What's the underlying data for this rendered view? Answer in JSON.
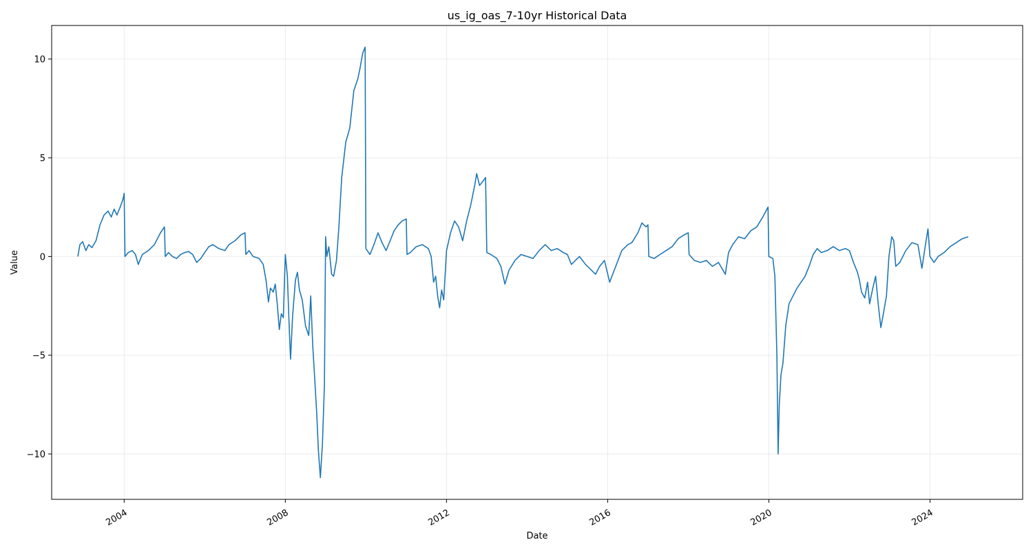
{
  "chart_data": {
    "type": "line",
    "title": "us_ig_oas_7-10yr Historical Data",
    "xlabel": "Date",
    "ylabel": "Value",
    "xlim": [
      2002.2,
      2026.3
    ],
    "ylim": [
      -12.3,
      11.7
    ],
    "grid": true,
    "x_ticks": [
      {
        "value": 2004,
        "label": "2004"
      },
      {
        "value": 2008,
        "label": "2008"
      },
      {
        "value": 2012,
        "label": "2012"
      },
      {
        "value": 2016,
        "label": "2016"
      },
      {
        "value": 2020,
        "label": "2020"
      },
      {
        "value": 2024,
        "label": "2024"
      }
    ],
    "y_ticks": [
      {
        "value": 10,
        "label": "10"
      },
      {
        "value": 5,
        "label": "5"
      },
      {
        "value": 0,
        "label": "0"
      },
      {
        "value": -5,
        "label": "−5"
      },
      {
        "value": -10,
        "label": "−10"
      }
    ],
    "series": [
      {
        "name": "us_ig_oas_7-10yr",
        "color": "#1f77b4",
        "points": [
          [
            2002.85,
            0.0
          ],
          [
            2002.9,
            0.6
          ],
          [
            2002.97,
            0.75
          ],
          [
            2003.05,
            0.3
          ],
          [
            2003.12,
            0.6
          ],
          [
            2003.2,
            0.45
          ],
          [
            2003.3,
            0.8
          ],
          [
            2003.4,
            1.6
          ],
          [
            2003.5,
            2.1
          ],
          [
            2003.6,
            2.3
          ],
          [
            2003.68,
            2.0
          ],
          [
            2003.75,
            2.4
          ],
          [
            2003.82,
            2.1
          ],
          [
            2003.9,
            2.5
          ],
          [
            2003.97,
            2.9
          ],
          [
            2004.0,
            3.2
          ],
          [
            2004.02,
            0.0
          ],
          [
            2004.1,
            0.2
          ],
          [
            2004.2,
            0.3
          ],
          [
            2004.28,
            0.1
          ],
          [
            2004.35,
            -0.4
          ],
          [
            2004.45,
            0.1
          ],
          [
            2004.6,
            0.3
          ],
          [
            2004.75,
            0.6
          ],
          [
            2004.9,
            1.2
          ],
          [
            2005.0,
            1.5
          ],
          [
            2005.02,
            0.0
          ],
          [
            2005.1,
            0.2
          ],
          [
            2005.2,
            0.0
          ],
          [
            2005.3,
            -0.1
          ],
          [
            2005.4,
            0.1
          ],
          [
            2005.5,
            0.2
          ],
          [
            2005.6,
            0.25
          ],
          [
            2005.7,
            0.1
          ],
          [
            2005.8,
            -0.3
          ],
          [
            2005.9,
            -0.1
          ],
          [
            2006.0,
            0.2
          ],
          [
            2006.1,
            0.5
          ],
          [
            2006.2,
            0.6
          ],
          [
            2006.35,
            0.4
          ],
          [
            2006.5,
            0.3
          ],
          [
            2006.6,
            0.6
          ],
          [
            2006.75,
            0.8
          ],
          [
            2006.9,
            1.1
          ],
          [
            2007.0,
            1.2
          ],
          [
            2007.02,
            0.1
          ],
          [
            2007.1,
            0.3
          ],
          [
            2007.2,
            0.0
          ],
          [
            2007.35,
            -0.1
          ],
          [
            2007.45,
            -0.4
          ],
          [
            2007.52,
            -1.2
          ],
          [
            2007.58,
            -2.3
          ],
          [
            2007.63,
            -1.6
          ],
          [
            2007.7,
            -1.8
          ],
          [
            2007.75,
            -1.4
          ],
          [
            2007.8,
            -2.4
          ],
          [
            2007.85,
            -3.7
          ],
          [
            2007.9,
            -2.9
          ],
          [
            2007.95,
            -3.1
          ],
          [
            2008.0,
            0.1
          ],
          [
            2008.05,
            -1.0
          ],
          [
            2008.1,
            -3.8
          ],
          [
            2008.13,
            -5.2
          ],
          [
            2008.18,
            -3.0
          ],
          [
            2008.25,
            -1.2
          ],
          [
            2008.3,
            -0.8
          ],
          [
            2008.35,
            -1.7
          ],
          [
            2008.42,
            -2.2
          ],
          [
            2008.5,
            -3.5
          ],
          [
            2008.58,
            -4.0
          ],
          [
            2008.63,
            -2.0
          ],
          [
            2008.68,
            -4.5
          ],
          [
            2008.73,
            -6.2
          ],
          [
            2008.78,
            -8.0
          ],
          [
            2008.82,
            -9.8
          ],
          [
            2008.87,
            -11.2
          ],
          [
            2008.92,
            -9.5
          ],
          [
            2008.97,
            -6.5
          ],
          [
            2009.0,
            1.0
          ],
          [
            2009.03,
            0.0
          ],
          [
            2009.08,
            0.5
          ],
          [
            2009.15,
            -0.9
          ],
          [
            2009.2,
            -1.0
          ],
          [
            2009.27,
            -0.2
          ],
          [
            2009.33,
            1.5
          ],
          [
            2009.4,
            4.0
          ],
          [
            2009.5,
            5.8
          ],
          [
            2009.6,
            6.5
          ],
          [
            2009.7,
            8.4
          ],
          [
            2009.8,
            9.0
          ],
          [
            2009.85,
            9.5
          ],
          [
            2009.92,
            10.3
          ],
          [
            2009.98,
            10.6
          ],
          [
            2010.0,
            0.4
          ],
          [
            2010.1,
            0.1
          ],
          [
            2010.2,
            0.6
          ],
          [
            2010.3,
            1.2
          ],
          [
            2010.4,
            0.7
          ],
          [
            2010.5,
            0.3
          ],
          [
            2010.6,
            0.8
          ],
          [
            2010.7,
            1.3
          ],
          [
            2010.8,
            1.6
          ],
          [
            2010.9,
            1.8
          ],
          [
            2011.0,
            1.9
          ],
          [
            2011.02,
            0.1
          ],
          [
            2011.1,
            0.2
          ],
          [
            2011.25,
            0.5
          ],
          [
            2011.4,
            0.6
          ],
          [
            2011.55,
            0.4
          ],
          [
            2011.62,
            0.0
          ],
          [
            2011.68,
            -1.3
          ],
          [
            2011.73,
            -1.0
          ],
          [
            2011.78,
            -2.0
          ],
          [
            2011.83,
            -2.6
          ],
          [
            2011.88,
            -1.7
          ],
          [
            2011.93,
            -2.2
          ],
          [
            2012.0,
            0.3
          ],
          [
            2012.1,
            1.2
          ],
          [
            2012.2,
            1.8
          ],
          [
            2012.3,
            1.5
          ],
          [
            2012.4,
            0.8
          ],
          [
            2012.5,
            1.8
          ],
          [
            2012.6,
            2.6
          ],
          [
            2012.7,
            3.6
          ],
          [
            2012.75,
            4.2
          ],
          [
            2012.82,
            3.6
          ],
          [
            2012.9,
            3.8
          ],
          [
            2012.97,
            4.0
          ],
          [
            2013.0,
            0.2
          ],
          [
            2013.1,
            0.1
          ],
          [
            2013.25,
            -0.1
          ],
          [
            2013.35,
            -0.5
          ],
          [
            2013.45,
            -1.4
          ],
          [
            2013.55,
            -0.7
          ],
          [
            2013.7,
            -0.2
          ],
          [
            2013.85,
            0.1
          ],
          [
            2014.0,
            0.0
          ],
          [
            2014.15,
            -0.1
          ],
          [
            2014.3,
            0.3
          ],
          [
            2014.45,
            0.6
          ],
          [
            2014.6,
            0.3
          ],
          [
            2014.75,
            0.4
          ],
          [
            2014.9,
            0.2
          ],
          [
            2015.0,
            0.1
          ],
          [
            2015.1,
            -0.4
          ],
          [
            2015.2,
            -0.2
          ],
          [
            2015.3,
            0.0
          ],
          [
            2015.45,
            -0.4
          ],
          [
            2015.55,
            -0.6
          ],
          [
            2015.7,
            -0.9
          ],
          [
            2015.8,
            -0.5
          ],
          [
            2015.92,
            -0.2
          ],
          [
            2016.05,
            -1.3
          ],
          [
            2016.2,
            -0.5
          ],
          [
            2016.35,
            0.3
          ],
          [
            2016.5,
            0.6
          ],
          [
            2016.6,
            0.7
          ],
          [
            2016.75,
            1.2
          ],
          [
            2016.85,
            1.7
          ],
          [
            2016.95,
            1.5
          ],
          [
            2017.0,
            1.6
          ],
          [
            2017.02,
            0.0
          ],
          [
            2017.15,
            -0.1
          ],
          [
            2017.3,
            0.1
          ],
          [
            2017.45,
            0.3
          ],
          [
            2017.6,
            0.5
          ],
          [
            2017.75,
            0.9
          ],
          [
            2017.9,
            1.1
          ],
          [
            2018.0,
            1.2
          ],
          [
            2018.02,
            0.1
          ],
          [
            2018.15,
            -0.2
          ],
          [
            2018.3,
            -0.3
          ],
          [
            2018.45,
            -0.2
          ],
          [
            2018.6,
            -0.5
          ],
          [
            2018.75,
            -0.3
          ],
          [
            2018.92,
            -0.9
          ],
          [
            2019.0,
            0.2
          ],
          [
            2019.1,
            0.6
          ],
          [
            2019.25,
            1.0
          ],
          [
            2019.4,
            0.9
          ],
          [
            2019.55,
            1.3
          ],
          [
            2019.7,
            1.5
          ],
          [
            2019.85,
            2.0
          ],
          [
            2019.98,
            2.5
          ],
          [
            2020.0,
            0.0
          ],
          [
            2020.1,
            -0.1
          ],
          [
            2020.15,
            -1.0
          ],
          [
            2020.2,
            -5.0
          ],
          [
            2020.23,
            -10.0
          ],
          [
            2020.26,
            -7.5
          ],
          [
            2020.3,
            -6.0
          ],
          [
            2020.35,
            -5.4
          ],
          [
            2020.42,
            -3.5
          ],
          [
            2020.5,
            -2.4
          ],
          [
            2020.6,
            -2.0
          ],
          [
            2020.7,
            -1.6
          ],
          [
            2020.8,
            -1.3
          ],
          [
            2020.9,
            -1.0
          ],
          [
            2021.0,
            -0.5
          ],
          [
            2021.1,
            0.1
          ],
          [
            2021.2,
            0.4
          ],
          [
            2021.3,
            0.2
          ],
          [
            2021.45,
            0.3
          ],
          [
            2021.6,
            0.5
          ],
          [
            2021.75,
            0.3
          ],
          [
            2021.9,
            0.4
          ],
          [
            2022.0,
            0.3
          ],
          [
            2022.1,
            -0.3
          ],
          [
            2022.2,
            -0.8
          ],
          [
            2022.25,
            -1.2
          ],
          [
            2022.3,
            -1.8
          ],
          [
            2022.38,
            -2.1
          ],
          [
            2022.45,
            -1.3
          ],
          [
            2022.5,
            -2.4
          ],
          [
            2022.58,
            -1.6
          ],
          [
            2022.65,
            -1.0
          ],
          [
            2022.72,
            -2.5
          ],
          [
            2022.78,
            -3.6
          ],
          [
            2022.85,
            -2.8
          ],
          [
            2022.92,
            -2.0
          ],
          [
            2022.98,
            0.0
          ],
          [
            2023.05,
            1.0
          ],
          [
            2023.1,
            0.8
          ],
          [
            2023.15,
            -0.5
          ],
          [
            2023.25,
            -0.3
          ],
          [
            2023.4,
            0.3
          ],
          [
            2023.55,
            0.7
          ],
          [
            2023.7,
            0.6
          ],
          [
            2023.8,
            -0.6
          ],
          [
            2023.88,
            0.5
          ],
          [
            2023.95,
            1.4
          ],
          [
            2024.0,
            0.0
          ],
          [
            2024.1,
            -0.3
          ],
          [
            2024.2,
            0.0
          ],
          [
            2024.35,
            0.2
          ],
          [
            2024.5,
            0.5
          ],
          [
            2024.65,
            0.7
          ],
          [
            2024.8,
            0.9
          ],
          [
            2024.95,
            1.0
          ]
        ]
      }
    ]
  }
}
